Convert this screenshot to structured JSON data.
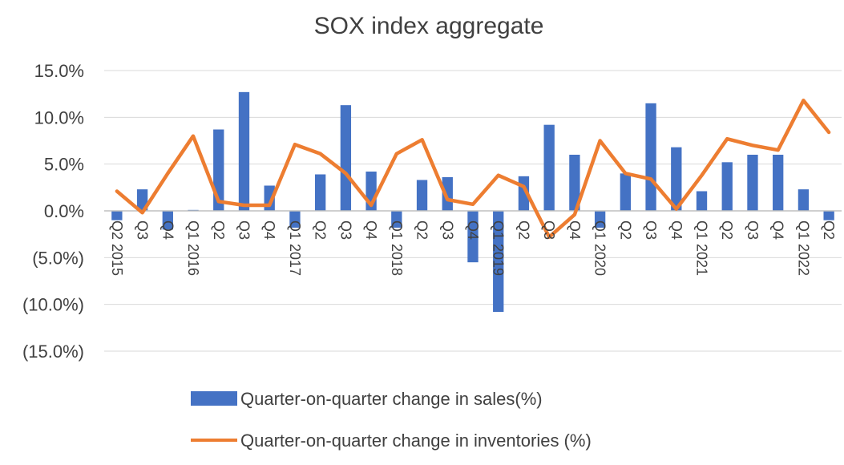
{
  "chart_data": {
    "type": "bar",
    "title": "SOX index aggregate",
    "xlabel": "",
    "ylabel": "",
    "ylim": [
      -0.15,
      0.15
    ],
    "yticks": [
      {
        "value": 0.15,
        "label": "15.0%"
      },
      {
        "value": 0.1,
        "label": "10.0%"
      },
      {
        "value": 0.05,
        "label": "5.0%"
      },
      {
        "value": 0.0,
        "label": "0.0%"
      },
      {
        "value": -0.05,
        "label": "(5.0%)"
      },
      {
        "value": -0.1,
        "label": "(10.0%)"
      },
      {
        "value": -0.15,
        "label": "(15.0%)"
      }
    ],
    "grid": "horizontal",
    "legend_position": "bottom",
    "categories": [
      "Q2 2015",
      "Q3",
      "Q4",
      "Q1 2016",
      "Q2",
      "Q3",
      "Q4",
      "Q1 2017",
      "Q2",
      "Q3",
      "Q4",
      "Q1 2018",
      "Q2",
      "Q3",
      "Q4",
      "Q1 2019",
      "Q2",
      "Q3",
      "Q4",
      "Q1 2020",
      "Q2",
      "Q3",
      "Q4",
      "Q1 2021",
      "Q2",
      "Q3",
      "Q4",
      "Q1 2022",
      "Q2"
    ],
    "series": [
      {
        "name": "Quarter-on-quarter change in sales(%)",
        "type": "bar",
        "color": "#4472C4",
        "values": [
          -0.01,
          0.023,
          -0.02,
          0.001,
          0.087,
          0.127,
          0.027,
          -0.018,
          0.039,
          0.113,
          0.042,
          -0.018,
          0.033,
          0.036,
          -0.055,
          -0.108,
          0.037,
          0.092,
          0.06,
          -0.018,
          0.04,
          0.115,
          0.068,
          0.021,
          0.052,
          0.06,
          0.06,
          0.023,
          -0.01
        ]
      },
      {
        "name": "Quarter-on-quarter change in inventories (%)",
        "type": "line",
        "color": "#ED7D31",
        "values": [
          0.021,
          -0.002,
          0.04,
          0.08,
          0.01,
          0.006,
          0.006,
          0.071,
          0.061,
          0.04,
          0.006,
          0.061,
          0.076,
          0.012,
          0.007,
          0.038,
          0.026,
          -0.028,
          -0.004,
          0.075,
          0.04,
          0.034,
          0.002,
          0.038,
          0.077,
          0.07,
          0.065,
          0.118,
          0.084
        ]
      }
    ]
  }
}
